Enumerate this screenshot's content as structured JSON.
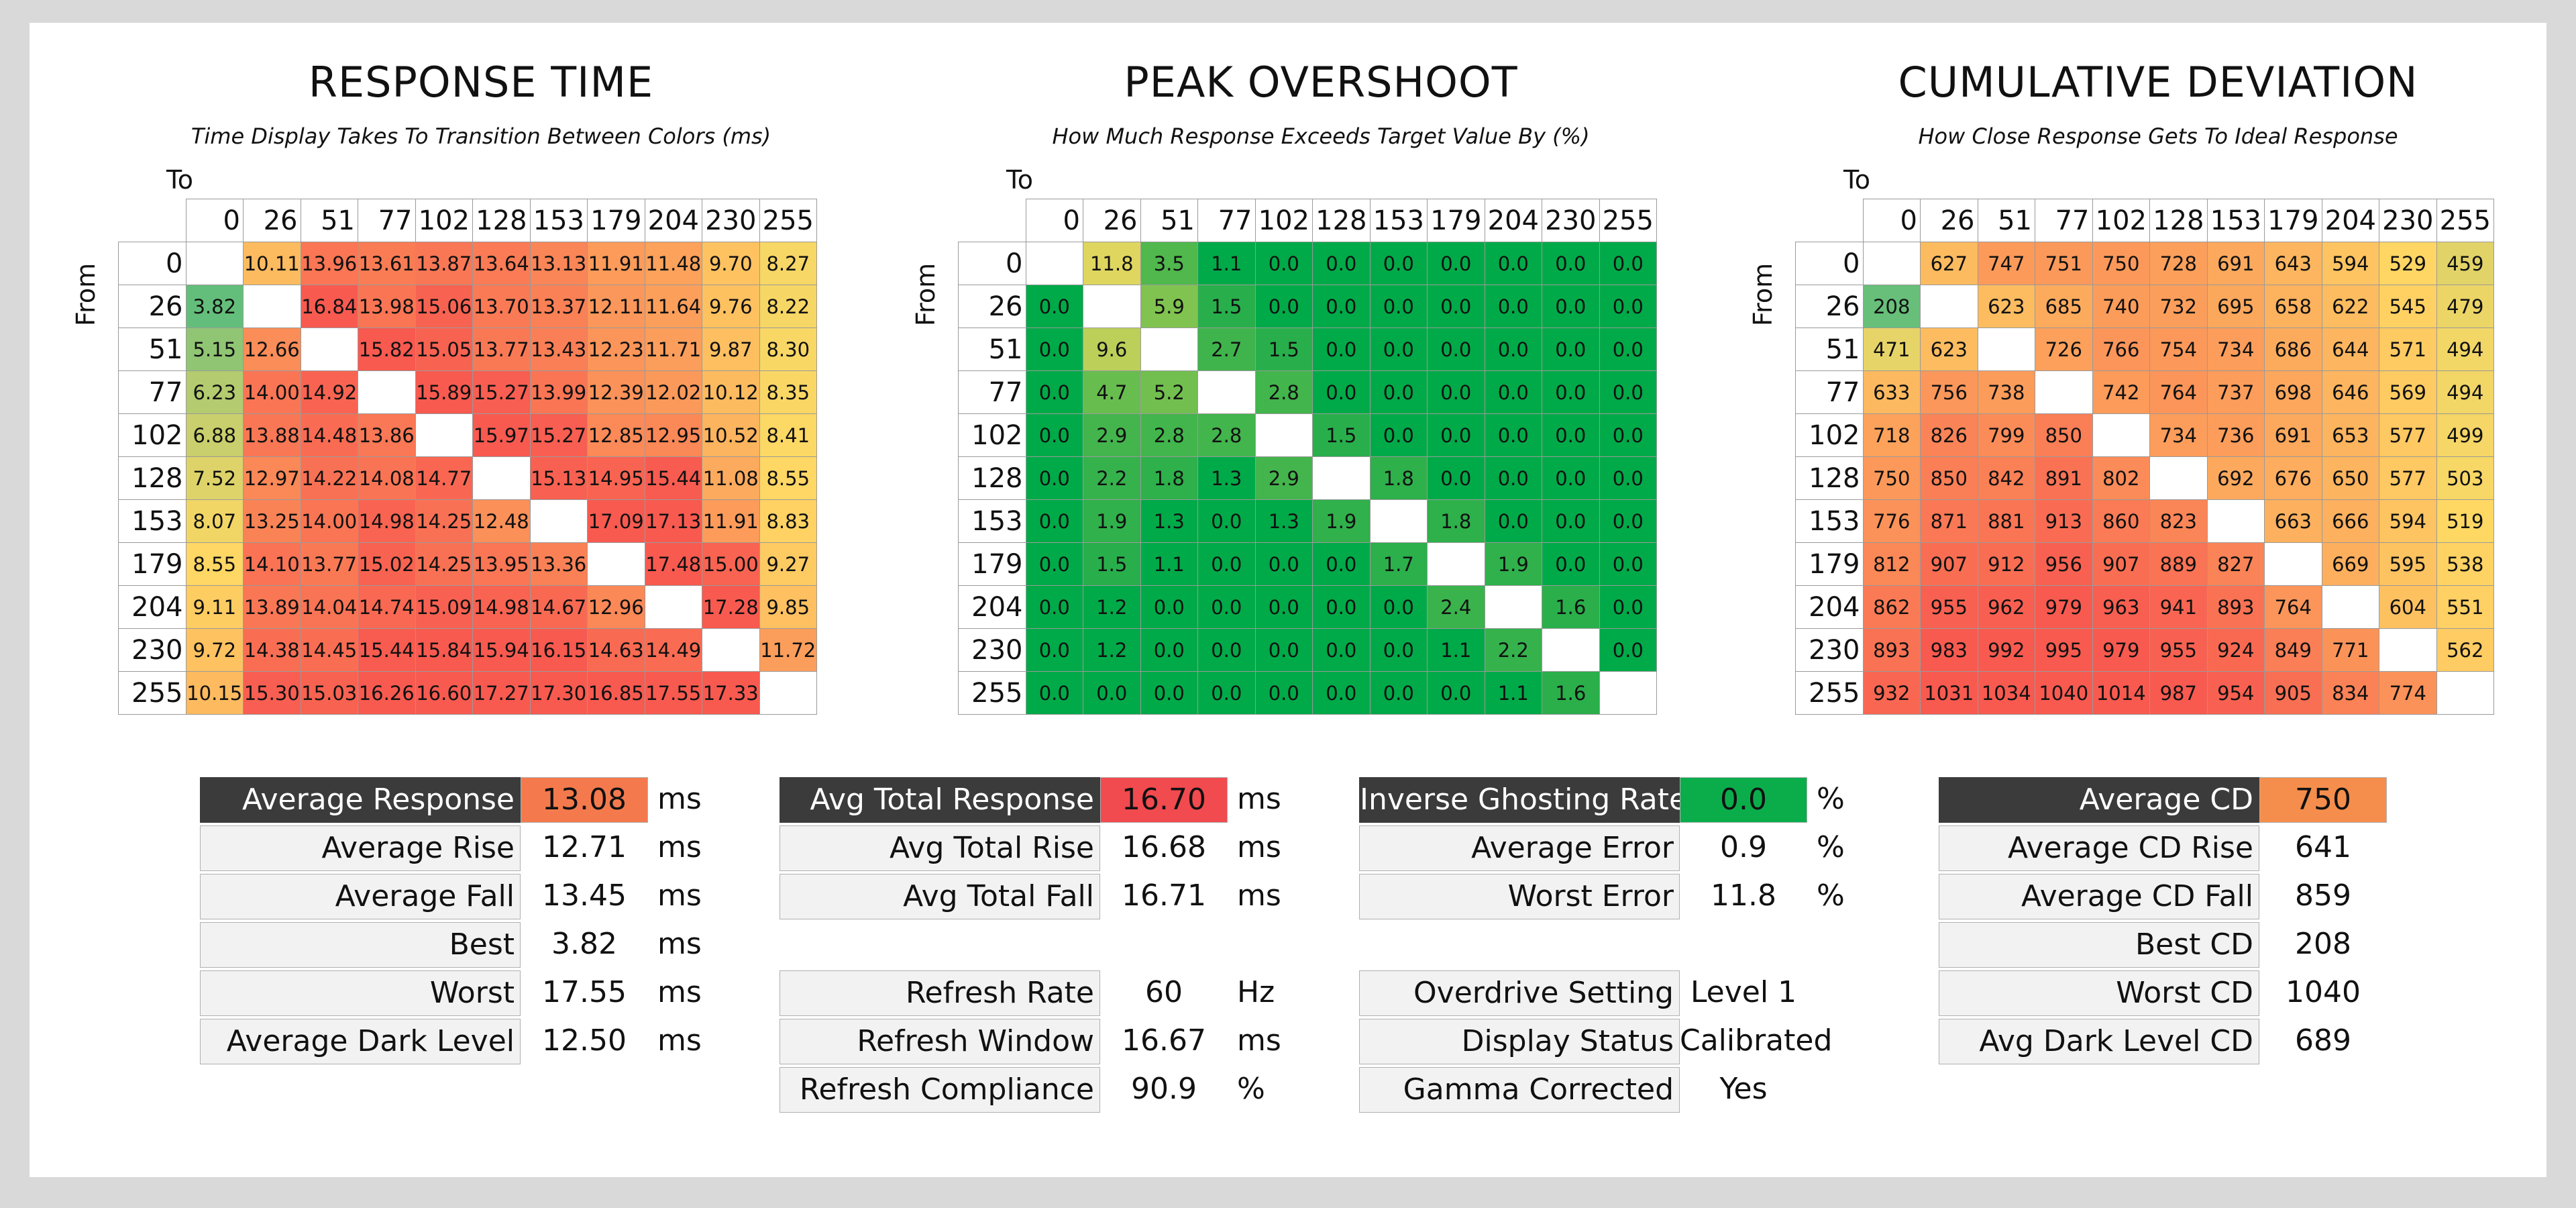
{
  "chart_data": [
    {
      "type": "heatmap",
      "title": "RESPONSE TIME",
      "subtitle": "Time Display Takes To Transition Between Colors (ms)",
      "xlabel": "To",
      "ylabel": "From",
      "categories": [
        "0",
        "26",
        "51",
        "77",
        "102",
        "128",
        "153",
        "179",
        "204",
        "230",
        "255"
      ],
      "decimals": 2,
      "values": [
        [
          null,
          10.11,
          13.96,
          13.61,
          13.87,
          13.64,
          13.13,
          11.91,
          11.48,
          9.7,
          8.27
        ],
        [
          3.82,
          null,
          16.84,
          13.98,
          15.06,
          13.7,
          13.37,
          12.11,
          11.64,
          9.76,
          8.22
        ],
        [
          5.15,
          12.66,
          null,
          15.82,
          15.05,
          13.77,
          13.43,
          12.23,
          11.71,
          9.87,
          8.3
        ],
        [
          6.23,
          14.0,
          14.92,
          null,
          15.89,
          15.27,
          13.99,
          12.39,
          12.02,
          10.12,
          8.35
        ],
        [
          6.88,
          13.88,
          14.48,
          13.86,
          null,
          15.97,
          15.27,
          12.85,
          12.95,
          10.52,
          8.41
        ],
        [
          7.52,
          12.97,
          14.22,
          14.08,
          14.77,
          null,
          15.13,
          14.95,
          15.44,
          11.08,
          8.55
        ],
        [
          8.07,
          13.25,
          14.0,
          14.98,
          14.25,
          12.48,
          null,
          17.09,
          17.13,
          11.91,
          8.83
        ],
        [
          8.55,
          14.1,
          13.77,
          15.02,
          14.25,
          13.95,
          13.36,
          null,
          17.48,
          15.0,
          9.27
        ],
        [
          9.11,
          13.89,
          14.04,
          14.74,
          15.09,
          14.98,
          14.67,
          12.96,
          null,
          17.28,
          9.85
        ],
        [
          9.72,
          14.38,
          14.45,
          15.44,
          15.84,
          15.94,
          16.15,
          14.63,
          14.49,
          null,
          11.72
        ],
        [
          10.15,
          15.3,
          15.03,
          16.26,
          16.6,
          17.27,
          17.3,
          16.85,
          17.55,
          17.33,
          null
        ]
      ]
    },
    {
      "type": "heatmap",
      "title": "PEAK OVERSHOOT",
      "subtitle": "How Much Response Exceeds Target Value By (%)",
      "xlabel": "To",
      "ylabel": "From",
      "categories": [
        "0",
        "26",
        "51",
        "77",
        "102",
        "128",
        "153",
        "179",
        "204",
        "230",
        "255"
      ],
      "decimals": 1,
      "values": [
        [
          null,
          11.8,
          3.5,
          1.1,
          0.0,
          0.0,
          0.0,
          0.0,
          0.0,
          0.0,
          0.0
        ],
        [
          0.0,
          null,
          5.9,
          1.5,
          0.0,
          0.0,
          0.0,
          0.0,
          0.0,
          0.0,
          0.0
        ],
        [
          0.0,
          9.6,
          null,
          2.7,
          1.5,
          0.0,
          0.0,
          0.0,
          0.0,
          0.0,
          0.0
        ],
        [
          0.0,
          4.7,
          5.2,
          null,
          2.8,
          0.0,
          0.0,
          0.0,
          0.0,
          0.0,
          0.0
        ],
        [
          0.0,
          2.9,
          2.8,
          2.8,
          null,
          1.5,
          0.0,
          0.0,
          0.0,
          0.0,
          0.0
        ],
        [
          0.0,
          2.2,
          1.8,
          1.3,
          2.9,
          null,
          1.8,
          0.0,
          0.0,
          0.0,
          0.0
        ],
        [
          0.0,
          1.9,
          1.3,
          0.0,
          1.3,
          1.9,
          null,
          1.8,
          0.0,
          0.0,
          0.0
        ],
        [
          0.0,
          1.5,
          1.1,
          0.0,
          0.0,
          0.0,
          1.7,
          null,
          1.9,
          0.0,
          0.0
        ],
        [
          0.0,
          1.2,
          0.0,
          0.0,
          0.0,
          0.0,
          0.0,
          2.4,
          null,
          1.6,
          0.0
        ],
        [
          0.0,
          1.2,
          0.0,
          0.0,
          0.0,
          0.0,
          0.0,
          1.1,
          2.2,
          null,
          0.0
        ],
        [
          0.0,
          0.0,
          0.0,
          0.0,
          0.0,
          0.0,
          0.0,
          0.0,
          1.1,
          1.6,
          null
        ]
      ]
    },
    {
      "type": "heatmap",
      "title": "CUMULATIVE DEVIATION",
      "subtitle": "How Close Response Gets To Ideal Response",
      "xlabel": "To",
      "ylabel": "From",
      "categories": [
        "0",
        "26",
        "51",
        "77",
        "102",
        "128",
        "153",
        "179",
        "204",
        "230",
        "255"
      ],
      "decimals": 0,
      "values": [
        [
          null,
          627,
          747,
          751,
          750,
          728,
          691,
          643,
          594,
          529,
          459
        ],
        [
          208,
          null,
          623,
          685,
          740,
          732,
          695,
          658,
          622,
          545,
          479
        ],
        [
          471,
          623,
          null,
          726,
          766,
          754,
          734,
          686,
          644,
          571,
          494
        ],
        [
          633,
          756,
          738,
          null,
          742,
          764,
          737,
          698,
          646,
          569,
          494
        ],
        [
          718,
          826,
          799,
          850,
          null,
          734,
          736,
          691,
          653,
          577,
          499
        ],
        [
          750,
          850,
          842,
          891,
          802,
          null,
          692,
          676,
          650,
          577,
          503
        ],
        [
          776,
          871,
          881,
          913,
          860,
          823,
          null,
          663,
          666,
          594,
          519
        ],
        [
          812,
          907,
          912,
          956,
          907,
          889,
          827,
          null,
          669,
          595,
          538
        ],
        [
          862,
          955,
          962,
          979,
          963,
          941,
          893,
          764,
          null,
          604,
          551
        ],
        [
          893,
          983,
          992,
          995,
          979,
          955,
          924,
          849,
          771,
          null,
          562
        ],
        [
          932,
          1031,
          1034,
          1040,
          1014,
          987,
          954,
          905,
          834,
          774,
          null
        ]
      ]
    }
  ],
  "stats": [
    {
      "rows": [
        {
          "label": "Average Response",
          "value": "13.08",
          "unit": "ms",
          "header": true,
          "color": "#f47a4e"
        },
        {
          "label": "Average Rise",
          "value": "12.71",
          "unit": "ms"
        },
        {
          "label": "Average Fall",
          "value": "13.45",
          "unit": "ms"
        },
        {
          "label": "Best",
          "value": "3.82",
          "unit": "ms"
        },
        {
          "label": "Worst",
          "value": "17.55",
          "unit": "ms"
        },
        {
          "label": "Average Dark Level",
          "value": "12.50",
          "unit": "ms"
        }
      ]
    },
    {
      "rows": [
        {
          "label": "Avg Total Response",
          "value": "16.70",
          "unit": "ms",
          "header": true,
          "color": "#f14a4f"
        },
        {
          "label": "Avg Total Rise",
          "value": "16.68",
          "unit": "ms"
        },
        {
          "label": "Avg Total Fall",
          "value": "16.71",
          "unit": "ms"
        },
        null,
        {
          "label": "Refresh Rate",
          "value": "60",
          "unit": "Hz"
        },
        {
          "label": "Refresh Window",
          "value": "16.67",
          "unit": "ms"
        },
        {
          "label": "Refresh Compliance",
          "value": "90.9",
          "unit": "%"
        }
      ]
    },
    {
      "rows": [
        {
          "label": "Inverse Ghosting Rate",
          "value": "0.0",
          "unit": "%",
          "header": true,
          "color": "#0bad4b"
        },
        {
          "label": "Average Error",
          "value": "0.9",
          "unit": "%"
        },
        {
          "label": "Worst Error",
          "value": "11.8",
          "unit": "%"
        },
        null,
        {
          "label": "Overdrive Setting",
          "value": "Level 1",
          "unit": ""
        },
        {
          "label": "Display Status",
          "value": "Calibrated",
          "unit": ""
        },
        {
          "label": "Gamma Corrected",
          "value": "Yes",
          "unit": ""
        }
      ]
    },
    {
      "rows": [
        {
          "label": "Average CD",
          "value": "750",
          "unit": "",
          "header": true,
          "color": "#f58e4c"
        },
        {
          "label": "Average CD Rise",
          "value": "641",
          "unit": ""
        },
        {
          "label": "Average CD Fall",
          "value": "859",
          "unit": ""
        },
        {
          "label": "Best CD",
          "value": "208",
          "unit": ""
        },
        {
          "label": "Worst CD",
          "value": "1040",
          "unit": ""
        },
        {
          "label": "Avg Dark Level CD",
          "value": "689",
          "unit": ""
        }
      ]
    }
  ]
}
